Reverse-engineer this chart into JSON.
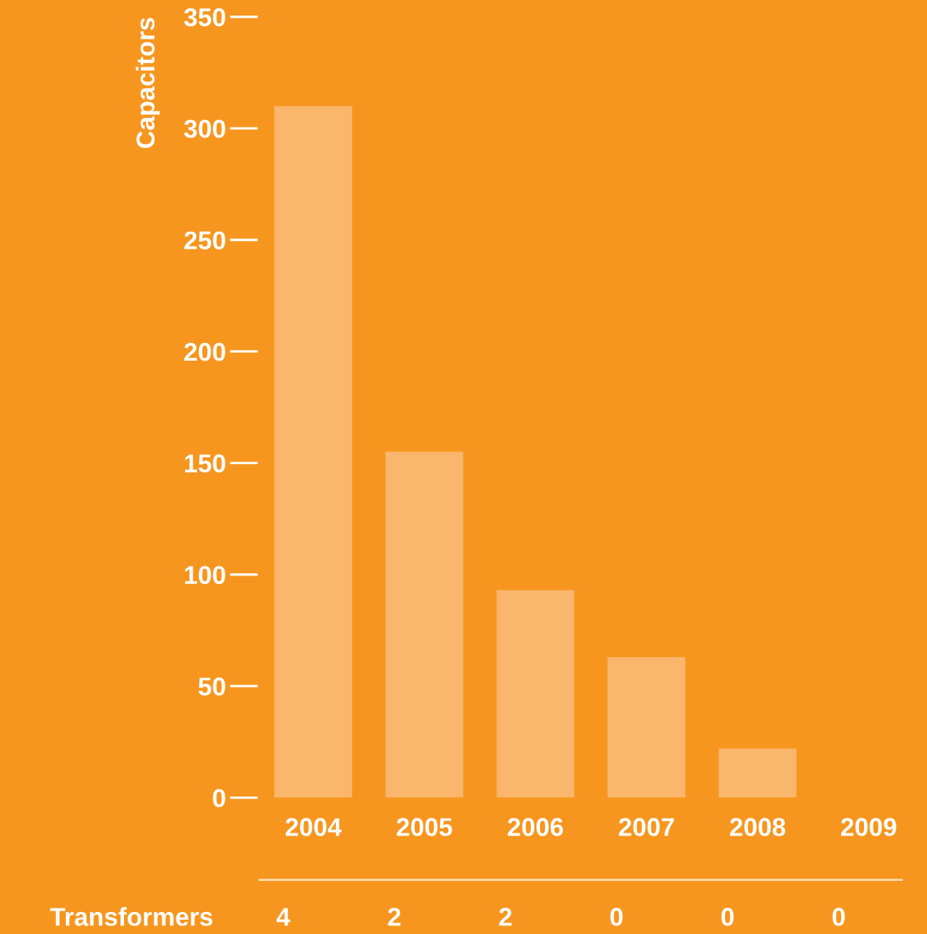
{
  "chart_data": {
    "type": "bar",
    "ylabel": "Capacitors",
    "categories": [
      "2004",
      "2005",
      "2006",
      "2007",
      "2008",
      "2009"
    ],
    "values": [
      310,
      155,
      93,
      63,
      22,
      0
    ],
    "color": "#f9b66c",
    "ylim": [
      0,
      350
    ],
    "yticks": [
      0,
      50,
      100,
      150,
      200,
      250,
      300,
      350
    ],
    "grid": false,
    "annotations": [
      "Transformers",
      "4",
      "2",
      "2",
      "0",
      "0",
      "0"
    ]
  }
}
